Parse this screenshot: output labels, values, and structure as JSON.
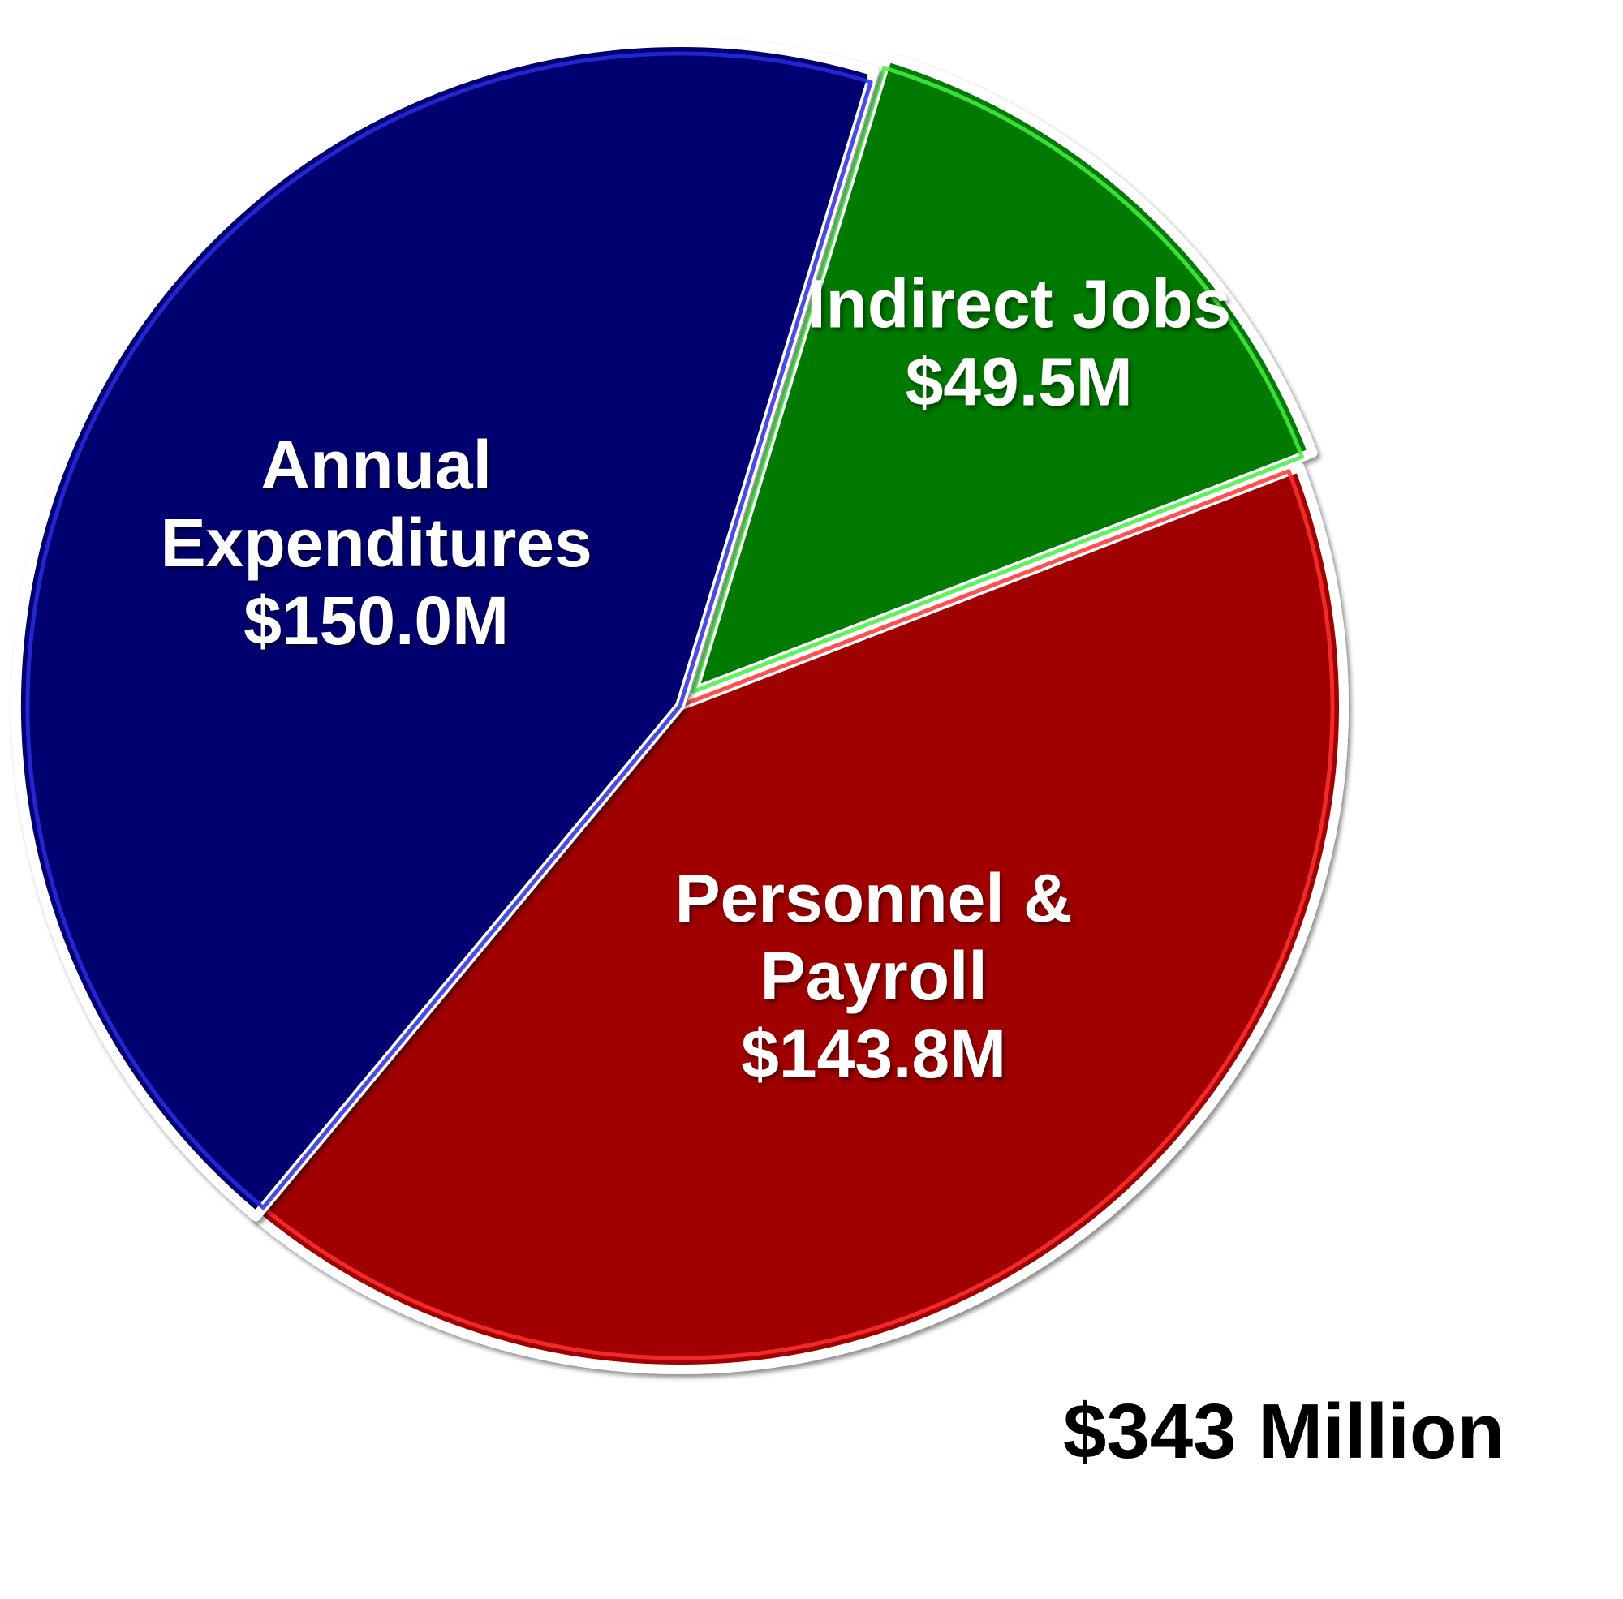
{
  "chart_data": {
    "type": "pie",
    "total_label": "$343 Million",
    "slices": [
      {
        "name": "Indirect Jobs",
        "label_lines": [
          "Indirect Jobs",
          "$49.5M"
        ],
        "value": 49.5,
        "color": "#067a06",
        "edge_color": "#44ee44",
        "exploded": true
      },
      {
        "name": "Personnel & Payroll",
        "label_lines": [
          "Personnel &",
          "Payroll",
          "$143.8M"
        ],
        "value": 143.8,
        "color": "#a00000",
        "edge_color": "#ff3030",
        "exploded": false
      },
      {
        "name": "Annual Expenditures",
        "label_lines": [
          "Annual",
          "Expenditures",
          "$150.0M"
        ],
        "value": 150.0,
        "color": "#000070",
        "edge_color": "#2a2ae0",
        "exploded": false
      }
    ]
  }
}
